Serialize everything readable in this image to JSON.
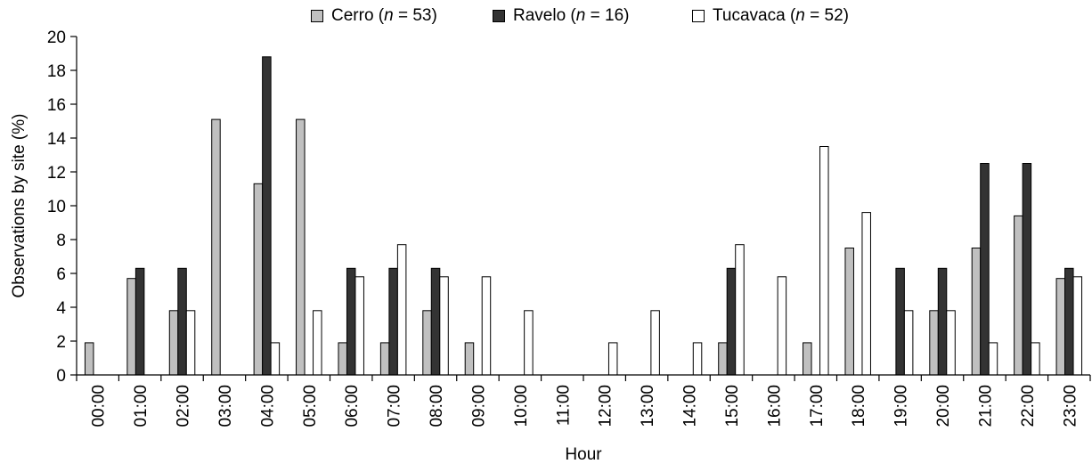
{
  "chart_data": {
    "type": "bar",
    "title": "",
    "xlabel": "Hour",
    "ylabel": "Observations by site (%)",
    "ylim": [
      0,
      20
    ],
    "yticks": [
      0,
      2,
      4,
      6,
      8,
      10,
      12,
      14,
      16,
      18,
      20
    ],
    "grid": false,
    "legend_position": "top-center",
    "categories": [
      "00:00",
      "01:00",
      "02:00",
      "03:00",
      "04:00",
      "05:00",
      "06:00",
      "07:00",
      "08:00",
      "09:00",
      "10:00",
      "11:00",
      "12:00",
      "13:00",
      "14:00",
      "15:00",
      "16:00",
      "17:00",
      "18:00",
      "19:00",
      "20:00",
      "21:00",
      "22:00",
      "23:00"
    ],
    "series": [
      {
        "name": "Cerro",
        "n_label": "n",
        "n_value": "53",
        "color": "#c0c0c0",
        "values": [
          1.9,
          5.7,
          3.8,
          15.1,
          11.3,
          15.1,
          1.9,
          1.9,
          3.8,
          1.9,
          0,
          0,
          0,
          0,
          0,
          1.9,
          0,
          1.9,
          7.5,
          0,
          3.8,
          7.5,
          9.4,
          5.7
        ]
      },
      {
        "name": "Ravelo",
        "n_label": "n",
        "n_value": "16",
        "color": "#333333",
        "values": [
          0,
          6.3,
          6.3,
          0,
          18.8,
          0,
          6.3,
          6.3,
          6.3,
          0,
          0,
          0,
          0,
          0,
          0,
          6.3,
          0,
          0,
          0,
          6.3,
          6.3,
          12.5,
          12.5,
          6.3
        ]
      },
      {
        "name": "Tucavaca",
        "n_label": "n",
        "n_value": "52",
        "color": "#ffffff",
        "values": [
          0,
          0,
          3.8,
          0,
          1.9,
          3.8,
          5.8,
          7.7,
          5.8,
          5.8,
          3.8,
          0,
          1.9,
          3.8,
          1.9,
          7.7,
          5.8,
          13.5,
          9.6,
          3.8,
          3.8,
          1.9,
          1.9,
          5.8
        ]
      }
    ]
  }
}
